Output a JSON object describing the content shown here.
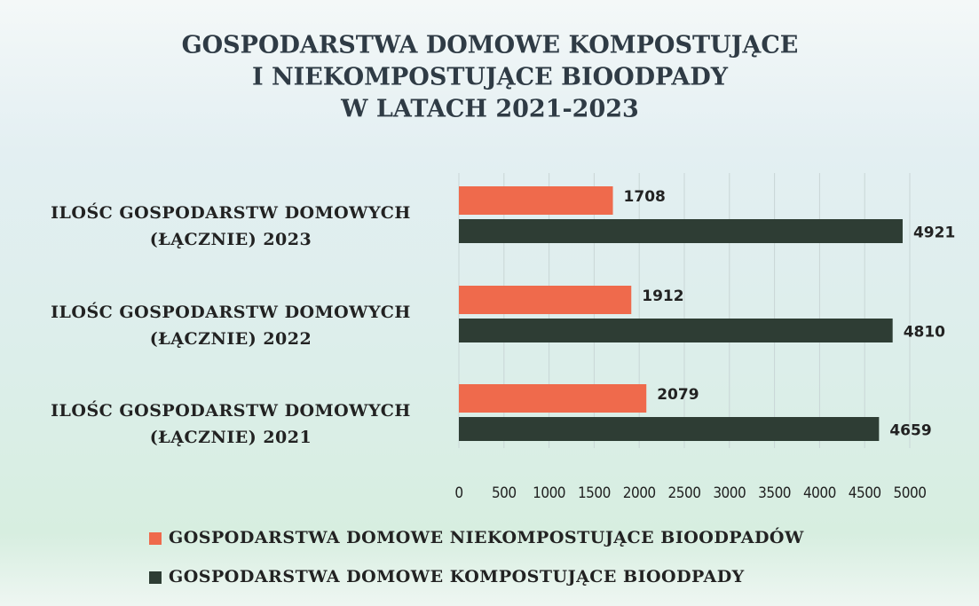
{
  "chart_data": {
    "type": "bar",
    "orientation": "horizontal",
    "title": [
      "GOSPODARSTWA DOMOWE KOMPOSTUJĄCE",
      "I NIEKOMPOSTUJĄCE BIOODPADY",
      "W LATACH 2021-2023"
    ],
    "categories": [
      "ILOŚC GOSPODARSTW DOMOWYCH\n(ŁĄCZNIE) 2023",
      "ILOŚC GOSPODARSTW DOMOWYCH\n(ŁĄCZNIE) 2022",
      "ILOŚC GOSPODARSTW DOMOWYCH\n(ŁĄCZNIE) 2021"
    ],
    "series": [
      {
        "name": "GOSPODARSTWA DOMOWE NIEKOMPOSTUJĄCE BIOODPADÓW",
        "color": "#ef6a4c",
        "values": [
          1708,
          1912,
          2079
        ]
      },
      {
        "name": "GOSPODARSTWA DOMOWE KOMPOSTUJĄCE BIOODPADY",
        "color": "#2e3d34",
        "values": [
          4921,
          4810,
          4659
        ]
      }
    ],
    "xlim": [
      0,
      5000
    ],
    "xticks": [
      0,
      500,
      1000,
      1500,
      2000,
      2500,
      3000,
      3500,
      4000,
      4500,
      5000
    ],
    "grid": true,
    "legend": "bottom"
  }
}
